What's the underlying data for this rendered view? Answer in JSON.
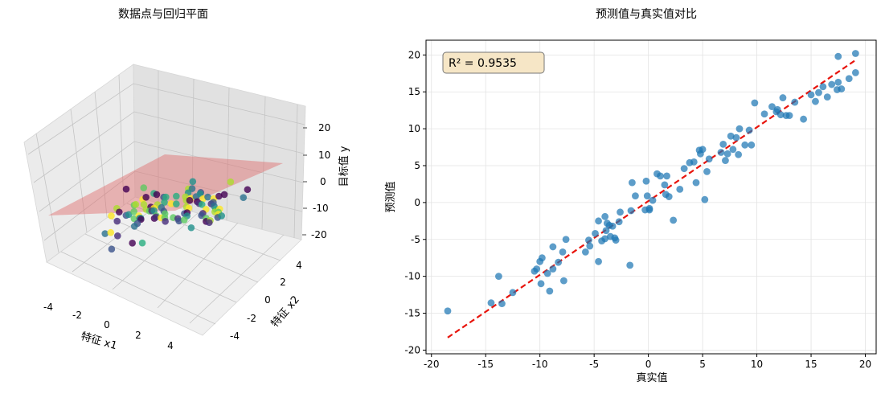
{
  "figure": {
    "left_title": "数据点与回归平面",
    "right_title": "预测值与真实值对比"
  },
  "chart_data": [
    {
      "type": "scatter3d",
      "title": "数据点与回归平面",
      "xlabel": "特征 x1",
      "ylabel": "特征 x2",
      "zlabel": "目标值 y",
      "x_ticks": [
        "-4",
        "-2",
        "0",
        "2",
        "4"
      ],
      "y_ticks": [
        "-4",
        "-2",
        "0",
        "2",
        "4"
      ],
      "z_ticks": [
        "20",
        "10",
        "0",
        "-10",
        "-20"
      ],
      "xlim": [
        -5.5,
        5.5
      ],
      "ylim": [
        -5.5,
        5.5
      ],
      "zlim": [
        -22,
        22
      ],
      "plane_color": "#e06a6a",
      "colormap": "viridis"
    },
    {
      "type": "scatter",
      "title": "预测值与真实值对比",
      "xlabel": "真实值",
      "ylabel": "预测值",
      "xlim": [
        -20.5,
        21
      ],
      "ylim": [
        -20.5,
        22
      ],
      "x_ticks": [
        -20,
        -15,
        -10,
        -5,
        0,
        5,
        10,
        15,
        20
      ],
      "y_ticks": [
        -20,
        -15,
        -10,
        -5,
        0,
        5,
        10,
        15,
        20
      ],
      "grid": true,
      "annotation": "R² = 0.9535",
      "point_color": "#1f77b4",
      "line_color": "#e8140c",
      "reference_line": [
        [
          -18.5,
          -18.3
        ],
        [
          19.0,
          19.2
        ]
      ],
      "points": [
        [
          -18.5,
          -14.7
        ],
        [
          -13.8,
          -10.0
        ],
        [
          -14.5,
          -13.6
        ],
        [
          -13.5,
          -13.7
        ],
        [
          -12.5,
          -12.2
        ],
        [
          -10.5,
          -9.3
        ],
        [
          -10.3,
          -9.0
        ],
        [
          -10.0,
          -8.0
        ],
        [
          -9.8,
          -7.5
        ],
        [
          -9.9,
          -11.0
        ],
        [
          -9.3,
          -9.6
        ],
        [
          -9.1,
          -12.0
        ],
        [
          -8.8,
          -9.0
        ],
        [
          -8.8,
          -6.0
        ],
        [
          -8.3,
          -8.1
        ],
        [
          -7.9,
          -6.7
        ],
        [
          -7.8,
          -10.6
        ],
        [
          -7.6,
          -5.0
        ],
        [
          -5.8,
          -6.7
        ],
        [
          -5.5,
          -5.1
        ],
        [
          -5.4,
          -5.9
        ],
        [
          -4.9,
          -4.2
        ],
        [
          -4.6,
          -8.0
        ],
        [
          -4.6,
          -2.5
        ],
        [
          -4.3,
          -5.2
        ],
        [
          -4.0,
          -4.9
        ],
        [
          -4.0,
          -1.9
        ],
        [
          -3.9,
          -3.8
        ],
        [
          -3.8,
          -2.8
        ],
        [
          -3.6,
          -3.1
        ],
        [
          -3.5,
          -4.6
        ],
        [
          -3.3,
          -3.2
        ],
        [
          -3.1,
          -4.8
        ],
        [
          -3.0,
          -5.1
        ],
        [
          -2.7,
          -2.6
        ],
        [
          -2.6,
          -1.3
        ],
        [
          -1.7,
          -8.5
        ],
        [
          -1.6,
          -1.1
        ],
        [
          -1.5,
          2.7
        ],
        [
          -1.2,
          0.9
        ],
        [
          -0.3,
          -1.0
        ],
        [
          -0.2,
          2.9
        ],
        [
          -0.1,
          0.9
        ],
        [
          0.1,
          -1.0
        ],
        [
          0.1,
          -0.8
        ],
        [
          0.4,
          0.3
        ],
        [
          0.8,
          3.9
        ],
        [
          1.1,
          3.6
        ],
        [
          1.5,
          2.4
        ],
        [
          1.6,
          1.1
        ],
        [
          1.7,
          3.6
        ],
        [
          1.9,
          0.8
        ],
        [
          2.3,
          -2.4
        ],
        [
          2.9,
          1.8
        ],
        [
          3.3,
          4.6
        ],
        [
          3.8,
          5.4
        ],
        [
          4.2,
          5.5
        ],
        [
          4.4,
          2.7
        ],
        [
          4.7,
          7.1
        ],
        [
          4.8,
          6.6
        ],
        [
          5.0,
          7.2
        ],
        [
          5.2,
          0.4
        ],
        [
          5.4,
          4.2
        ],
        [
          5.6,
          5.9
        ],
        [
          6.7,
          6.8
        ],
        [
          6.9,
          7.9
        ],
        [
          7.1,
          5.7
        ],
        [
          7.3,
          6.6
        ],
        [
          7.6,
          9.0
        ],
        [
          7.8,
          7.2
        ],
        [
          8.1,
          8.8
        ],
        [
          8.3,
          6.5
        ],
        [
          8.4,
          10.0
        ],
        [
          8.9,
          7.8
        ],
        [
          9.3,
          9.8
        ],
        [
          9.5,
          7.8
        ],
        [
          9.8,
          13.5
        ],
        [
          10.7,
          12.0
        ],
        [
          11.4,
          13.0
        ],
        [
          11.8,
          12.3
        ],
        [
          11.9,
          12.6
        ],
        [
          12.2,
          11.9
        ],
        [
          12.4,
          14.2
        ],
        [
          12.7,
          11.8
        ],
        [
          13.0,
          11.8
        ],
        [
          13.5,
          13.6
        ],
        [
          14.3,
          11.3
        ],
        [
          15.0,
          14.6
        ],
        [
          15.4,
          13.7
        ],
        [
          15.7,
          14.9
        ],
        [
          16.1,
          15.7
        ],
        [
          16.5,
          14.3
        ],
        [
          16.9,
          16.0
        ],
        [
          17.4,
          15.3
        ],
        [
          17.5,
          16.3
        ],
        [
          17.5,
          19.8
        ],
        [
          17.8,
          15.4
        ],
        [
          18.5,
          16.8
        ],
        [
          19.1,
          20.2
        ],
        [
          19.1,
          17.6
        ]
      ]
    }
  ]
}
